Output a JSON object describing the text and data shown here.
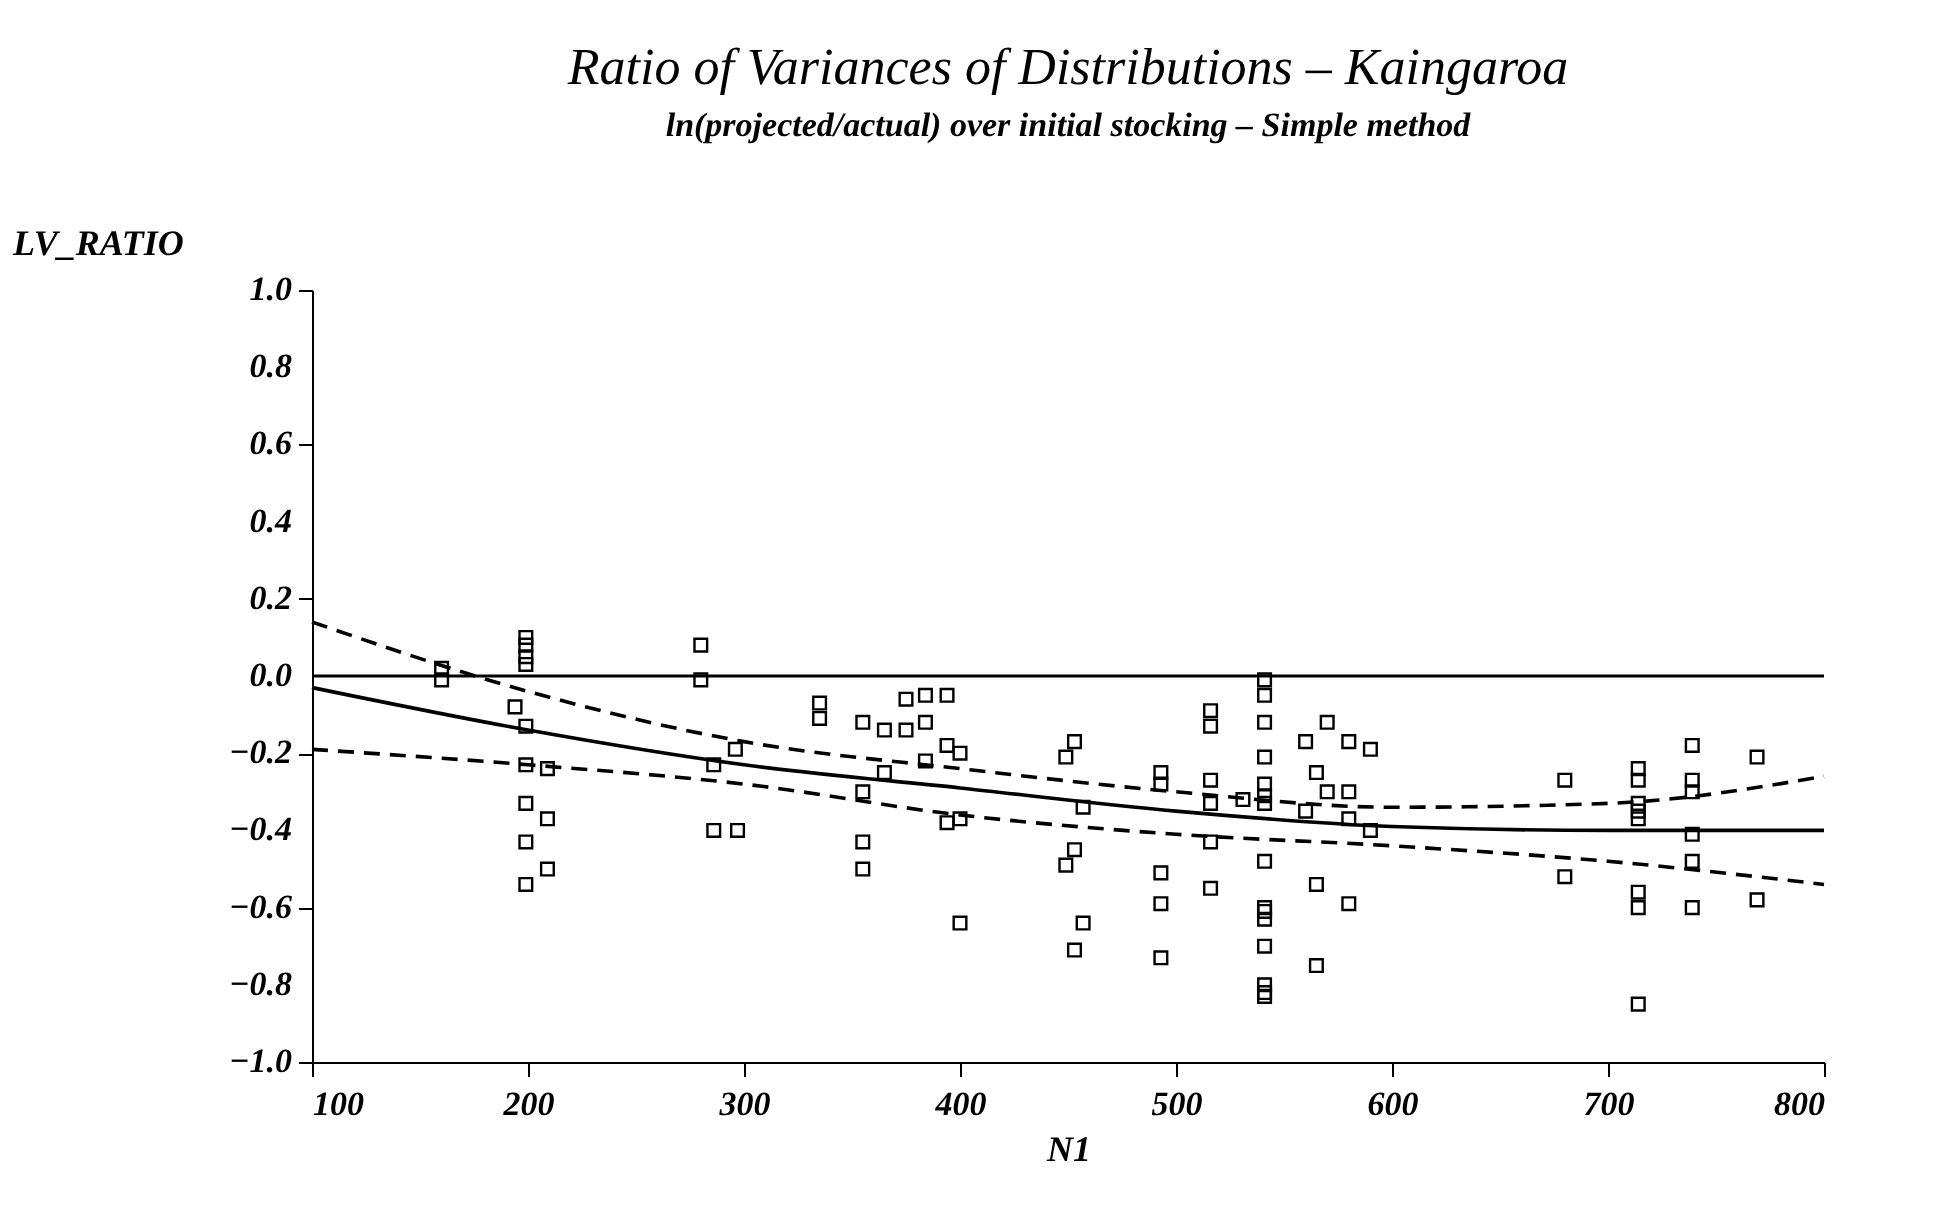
{
  "chart_data": {
    "type": "scatter",
    "title": "Ratio of Variances of Distributions – Kaingaroa",
    "subtitle": "ln(projected/actual)  over  initial stocking – Simple method",
    "xlabel": "N1",
    "ylabel": "LV_RATIO",
    "xlim": [
      100,
      800
    ],
    "xticks": [
      100,
      200,
      300,
      400,
      500,
      600,
      700,
      800
    ],
    "ylim": [
      -1.0,
      1.0
    ],
    "yticks": [
      {
        "value": -1.0,
        "label": "−1.0"
      },
      {
        "value": -0.8,
        "label": "−0.8"
      },
      {
        "value": -0.6,
        "label": "−0.6"
      },
      {
        "value": -0.4,
        "label": "−0.4"
      },
      {
        "value": -0.2,
        "label": "−0.2"
      },
      {
        "value": 0.0,
        "label": "0.0"
      },
      {
        "value": 0.2,
        "label": "0.2"
      },
      {
        "value": 0.4,
        "label": "0.4"
      },
      {
        "value": 0.6,
        "label": "0.6"
      },
      {
        "value": 0.8,
        "label": "0.8"
      },
      {
        "value": 1.0,
        "label": "1.0"
      }
    ],
    "grid": false,
    "ref_lines": [
      {
        "axis": "y",
        "value": 0.0,
        "label": null
      }
    ],
    "series": [
      {
        "color": "#000000",
        "marker": "square",
        "x": [
          160,
          160,
          199,
          199,
          199,
          199,
          194,
          199,
          199,
          209,
          199,
          209,
          199,
          209,
          199,
          280,
          280,
          286,
          296,
          286,
          297,
          335,
          335,
          355,
          355,
          355,
          355,
          365,
          365,
          375,
          375,
          384,
          384,
          384,
          394,
          394,
          400,
          394,
          400,
          400,
          449,
          453,
          457,
          453,
          449,
          457,
          453,
          493,
          493,
          493,
          493,
          493,
          516,
          516,
          516,
          516,
          516,
          516,
          531,
          541,
          541,
          541,
          541,
          541,
          541,
          541,
          541,
          541,
          541,
          541,
          541,
          541,
          541,
          541,
          560,
          560,
          565,
          565,
          565,
          570,
          570,
          580,
          580,
          580,
          580,
          590,
          590,
          680,
          680,
          714,
          714,
          714,
          714,
          714,
          714,
          714,
          714,
          739,
          739,
          739,
          739,
          739,
          739,
          769,
          769
        ],
        "values": [
          0.02,
          -0.01,
          0.1,
          0.08,
          0.05,
          0.03,
          -0.08,
          -0.13,
          -0.23,
          -0.24,
          -0.33,
          -0.37,
          -0.43,
          -0.5,
          -0.54,
          0.08,
          -0.01,
          -0.23,
          -0.19,
          -0.4,
          -0.4,
          -0.07,
          -0.11,
          -0.12,
          -0.3,
          -0.43,
          -0.5,
          -0.14,
          -0.25,
          -0.06,
          -0.14,
          -0.05,
          -0.12,
          -0.22,
          -0.05,
          -0.18,
          -0.2,
          -0.38,
          -0.37,
          -0.64,
          -0.21,
          -0.17,
          -0.34,
          -0.45,
          -0.49,
          -0.64,
          -0.71,
          -0.25,
          -0.28,
          -0.51,
          -0.59,
          -0.73,
          -0.09,
          -0.13,
          -0.27,
          -0.33,
          -0.43,
          -0.55,
          -0.32,
          -0.01,
          -0.05,
          -0.12,
          -0.21,
          -0.28,
          -0.31,
          -0.33,
          -0.48,
          -0.6,
          -0.61,
          -0.63,
          -0.7,
          -0.8,
          -0.82,
          -0.83,
          -0.17,
          -0.35,
          -0.25,
          -0.54,
          -0.75,
          -0.12,
          -0.3,
          -0.17,
          -0.3,
          -0.37,
          -0.59,
          -0.19,
          -0.4,
          -0.27,
          -0.52,
          -0.24,
          -0.27,
          -0.33,
          -0.35,
          -0.37,
          -0.56,
          -0.6,
          -0.85,
          -0.18,
          -0.27,
          -0.3,
          -0.41,
          -0.48,
          -0.6,
          -0.21,
          -0.58
        ]
      },
      {
        "type": "line",
        "color": "#000000",
        "line_style": "solid",
        "marker": "none",
        "x": [
          100,
          200,
          300,
          400,
          500,
          600,
          700,
          800
        ],
        "values": [
          -0.03,
          -0.14,
          -0.23,
          -0.29,
          -0.35,
          -0.39,
          -0.4,
          -0.4
        ]
      },
      {
        "type": "line",
        "color": "#000000",
        "line_style": "dashed",
        "marker": "none",
        "x": [
          100,
          200,
          300,
          400,
          500,
          600,
          700,
          800
        ],
        "values": [
          0.14,
          -0.04,
          -0.17,
          -0.24,
          -0.3,
          -0.34,
          -0.33,
          -0.26
        ]
      },
      {
        "type": "line",
        "color": "#000000",
        "line_style": "dashed",
        "marker": "none",
        "x": [
          100,
          200,
          300,
          400,
          500,
          600,
          700,
          800
        ],
        "values": [
          -0.19,
          -0.23,
          -0.28,
          -0.36,
          -0.41,
          -0.44,
          -0.48,
          -0.54
        ]
      }
    ]
  }
}
